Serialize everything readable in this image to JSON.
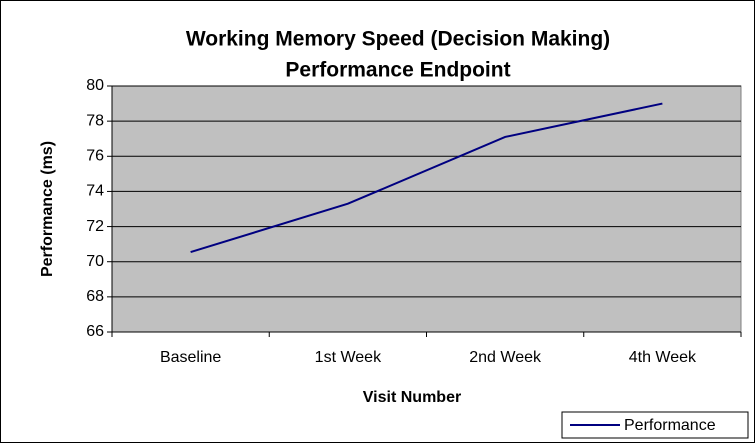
{
  "chart_data": {
    "type": "line",
    "title": [
      "Working Memory Speed (Decision Making)",
      "Performance Endpoint"
    ],
    "x_label": "Visit Number",
    "y_label": "Performance (ms)",
    "categories": [
      "Baseline",
      "1st Week",
      "2nd Week",
      "4th Week"
    ],
    "series": [
      {
        "name": "Performance",
        "color": "#000080",
        "values": [
          70.55,
          73.3,
          77.1,
          79.0
        ]
      }
    ],
    "ylim": [
      66,
      80
    ],
    "yticks": [
      66,
      68,
      70,
      72,
      74,
      76,
      78,
      80
    ],
    "grid": true,
    "legend": "bottom-right"
  }
}
